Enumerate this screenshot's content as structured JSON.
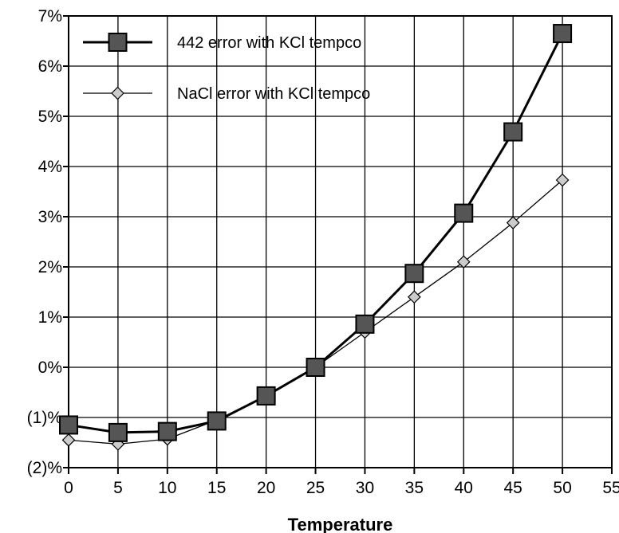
{
  "chart_data": {
    "type": "line",
    "title": "",
    "xlabel": "Temperature",
    "ylabel": "",
    "x": [
      0,
      5,
      10,
      15,
      20,
      25,
      30,
      35,
      40,
      45,
      50
    ],
    "xlim": [
      0,
      55
    ],
    "ylim": [
      -2,
      7
    ],
    "xticks": [
      0,
      5,
      10,
      15,
      20,
      25,
      30,
      35,
      40,
      45,
      50,
      55
    ],
    "xtick_labels": [
      "0",
      "5",
      "10",
      "15",
      "20",
      "25",
      "30",
      "35",
      "40",
      "45",
      "50",
      "55"
    ],
    "yticks": [
      -2,
      -1,
      0,
      1,
      2,
      3,
      4,
      5,
      6,
      7
    ],
    "ytick_labels": [
      "(2)%",
      "(1)%",
      "0%",
      "1%",
      "2%",
      "3%",
      "4%",
      "5%",
      "6%",
      "7%"
    ],
    "grid": true,
    "legend_position": "top-left",
    "series": [
      {
        "name": "442 error with KCl tempco",
        "marker": "square",
        "color": "#555555",
        "values": [
          -1.15,
          -1.3,
          -1.28,
          -1.07,
          -0.57,
          0.0,
          0.86,
          1.87,
          3.07,
          4.69,
          6.65
        ]
      },
      {
        "name": "NaCl error with KCl tempco",
        "marker": "diamond",
        "color": "#cccccc",
        "values": [
          -1.45,
          -1.53,
          -1.43,
          -1.05,
          -0.57,
          0.0,
          0.7,
          1.4,
          2.1,
          2.88,
          3.73
        ]
      }
    ]
  }
}
